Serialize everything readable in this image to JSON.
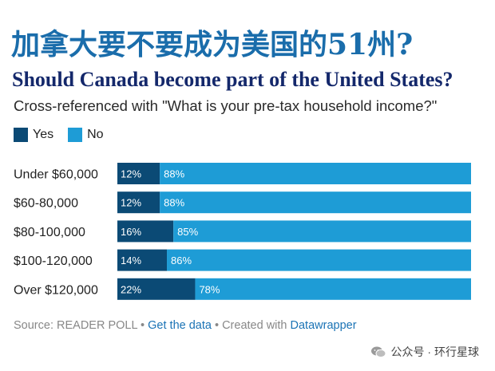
{
  "titles": {
    "chinese": "加拿大要不要成为美国的51州?",
    "english": "Should Canada become part of the United States?",
    "subtitle": "Cross-referenced with \"What is your pre-tax household income?\""
  },
  "colors": {
    "yes": "#0b4a75",
    "no": "#1e9cd6",
    "title_cn": "#1a6dab",
    "title_en": "#14286b"
  },
  "chart_data": {
    "type": "bar",
    "orientation": "horizontal",
    "stacked": true,
    "categories": [
      "Under $60,000",
      "$60-80,000",
      "$80-100,000",
      "$100-120,000",
      "Over $120,000"
    ],
    "series": [
      {
        "name": "Yes",
        "values": [
          12,
          12,
          16,
          14,
          22
        ],
        "labels": [
          "12%",
          "12%",
          "16%",
          "14%",
          "22%"
        ]
      },
      {
        "name": "No",
        "values": [
          88,
          88,
          85,
          86,
          78
        ],
        "labels": [
          "88%",
          "88%",
          "85%",
          "86%",
          "78%"
        ]
      }
    ],
    "legend": "top-left",
    "grid": false
  },
  "legend": {
    "yes": "Yes",
    "no": "No"
  },
  "footer": {
    "source": "Source: READER POLL",
    "sep1": " • ",
    "get_data": "Get the data",
    "sep2": " • Created with ",
    "tool": "Datawrapper"
  },
  "watermark": {
    "text": "公众号 · 环行星球",
    "icon": "wechat-icon"
  }
}
